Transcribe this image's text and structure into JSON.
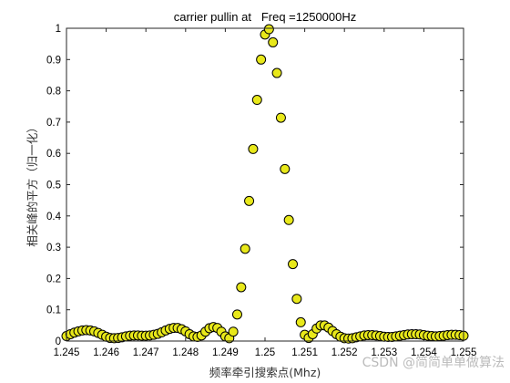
{
  "chart_data": {
    "type": "scatter",
    "title": "carrier pullin at   Freq =1250000Hz",
    "xlabel": "频率牵引搜索点(Mhz)",
    "ylabel": "相关峰的平方（归一化）",
    "xlim": [
      1.245,
      1.255
    ],
    "ylim": [
      0,
      1
    ],
    "xticks": [
      "1.245",
      "1.246",
      "1.247",
      "1.248",
      "1.249",
      "1.25",
      "1.251",
      "1.252",
      "1.253",
      "1.254",
      "1.255"
    ],
    "yticks": [
      "0",
      "0.1",
      "0.2",
      "0.3",
      "0.4",
      "0.5",
      "0.6",
      "0.7",
      "0.8",
      "0.9",
      "1"
    ],
    "grid": false,
    "marker": {
      "face_color": "#e8e81a",
      "edge_color": "#000000"
    },
    "x": [
      1.245,
      1.2451,
      1.2452,
      1.2453,
      1.2454,
      1.2455,
      1.2456,
      1.2457,
      1.2458,
      1.2459,
      1.246,
      1.2461,
      1.2462,
      1.2463,
      1.2464,
      1.2465,
      1.2466,
      1.2467,
      1.2468,
      1.2469,
      1.247,
      1.2471,
      1.2472,
      1.2473,
      1.2474,
      1.2475,
      1.2476,
      1.2477,
      1.2478,
      1.2479,
      1.248,
      1.2481,
      1.2482,
      1.2483,
      1.2484,
      1.2485,
      1.2486,
      1.2487,
      1.2488,
      1.2489,
      1.249,
      1.2491,
      1.2492,
      1.2493,
      1.2494,
      1.2495,
      1.2496,
      1.2497,
      1.2498,
      1.2499,
      1.25,
      1.2501,
      1.2502,
      1.2503,
      1.2504,
      1.2505,
      1.2506,
      1.2507,
      1.2508,
      1.2509,
      1.251,
      1.2511,
      1.2512,
      1.2513,
      1.2514,
      1.2515,
      1.2516,
      1.2517,
      1.2518,
      1.2519,
      1.252,
      1.2521,
      1.2522,
      1.2523,
      1.2524,
      1.2525,
      1.2526,
      1.2527,
      1.2528,
      1.2529,
      1.253,
      1.2531,
      1.2532,
      1.2533,
      1.2534,
      1.2535,
      1.2536,
      1.2537,
      1.2538,
      1.2539,
      1.254,
      1.2541,
      1.2542,
      1.2543,
      1.2544,
      1.2545,
      1.2546,
      1.2547,
      1.2548,
      1.2549,
      1.255
    ],
    "y": [
      0.016,
      0.022,
      0.027,
      0.031,
      0.034,
      0.035,
      0.034,
      0.031,
      0.026,
      0.02,
      0.014,
      0.01,
      0.009,
      0.01,
      0.012,
      0.015,
      0.017,
      0.018,
      0.018,
      0.017,
      0.017,
      0.018,
      0.02,
      0.023,
      0.028,
      0.034,
      0.039,
      0.042,
      0.042,
      0.038,
      0.031,
      0.022,
      0.015,
      0.013,
      0.018,
      0.03,
      0.041,
      0.045,
      0.042,
      0.03,
      0.015,
      0.009,
      0.03,
      0.085,
      0.172,
      0.295,
      0.448,
      0.614,
      0.771,
      0.9,
      0.98,
      0.997,
      0.955,
      0.857,
      0.714,
      0.55,
      0.387,
      0.246,
      0.135,
      0.06,
      0.02,
      0.01,
      0.022,
      0.04,
      0.05,
      0.05,
      0.043,
      0.032,
      0.022,
      0.014,
      0.009,
      0.008,
      0.009,
      0.012,
      0.015,
      0.018,
      0.019,
      0.019,
      0.018,
      0.016,
      0.014,
      0.013,
      0.013,
      0.015,
      0.017,
      0.019,
      0.021,
      0.022,
      0.022,
      0.021,
      0.019,
      0.017,
      0.016,
      0.015,
      0.016,
      0.017,
      0.019,
      0.02,
      0.02,
      0.019,
      0.017
    ]
  },
  "watermark": "CSDN @简简单单做算法"
}
